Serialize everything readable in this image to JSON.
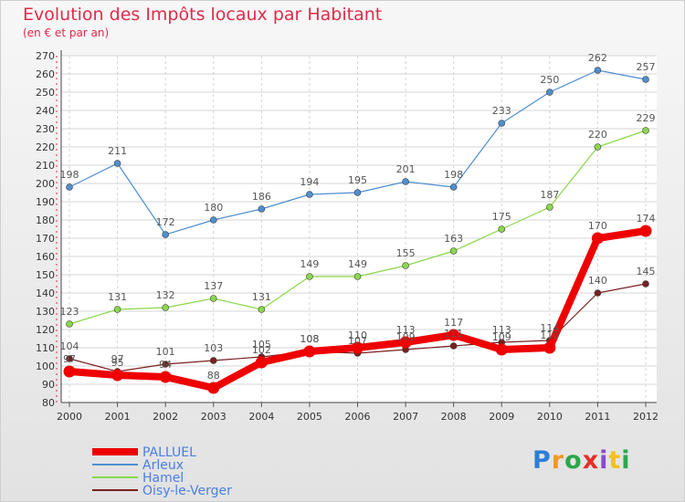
{
  "chart_data": {
    "type": "line",
    "title": "Evolution des Impôts locaux par Habitant",
    "subtitle": "(en € et par an)",
    "categories": [
      "2000",
      "2001",
      "2002",
      "2003",
      "2004",
      "2005",
      "2006",
      "2007",
      "2008",
      "2009",
      "2010",
      "2011",
      "2012"
    ],
    "ylim": [
      80,
      270
    ],
    "yticks": [
      80,
      90,
      100,
      110,
      120,
      130,
      140,
      150,
      160,
      170,
      180,
      190,
      200,
      210,
      220,
      230,
      240,
      250,
      260,
      270
    ],
    "grid": true,
    "legend_position": "bottom-left",
    "series": [
      {
        "name": "PALLUEL",
        "color": "#ee0000",
        "values": [
          97,
          95,
          94,
          88,
          102,
          108,
          110,
          113,
          117,
          109,
          110,
          170,
          174
        ],
        "labels": [
          "97",
          "95",
          "94",
          "88",
          "102",
          "108",
          "110",
          "113",
          "117",
          "109",
          "110",
          "170",
          "174"
        ]
      },
      {
        "name": "Arleux",
        "color": "#4f8fd0",
        "values": [
          198,
          211,
          172,
          180,
          186,
          194,
          195,
          201,
          198,
          233,
          250,
          262,
          257
        ],
        "labels": [
          "198",
          "211",
          "172",
          "180",
          "186",
          "194",
          "195",
          "201",
          "198",
          "233",
          "250",
          "262",
          "257"
        ]
      },
      {
        "name": "Hamel",
        "color": "#8ad84a",
        "values": [
          123,
          131,
          132,
          137,
          131,
          149,
          149,
          155,
          163,
          175,
          187,
          220,
          229
        ],
        "labels": [
          "123",
          "131",
          "132",
          "137",
          "131",
          "149",
          "149",
          "155",
          "163",
          "175",
          "187",
          "220",
          "229"
        ]
      },
      {
        "name": "Oisy-le-Verger",
        "color": "#7a2020",
        "values": [
          104,
          97,
          101,
          103,
          105,
          108,
          107,
          109,
          111,
          113,
          114,
          140,
          145
        ],
        "labels": [
          "104",
          "97",
          "101",
          "103",
          "105",
          "108",
          "107",
          "109",
          "111",
          "113",
          "114",
          "140",
          "145"
        ]
      }
    ]
  },
  "brand": {
    "letters": [
      "P",
      "r",
      "o",
      "x",
      "i",
      "t",
      "i"
    ],
    "colors": [
      "#2b7fd8",
      "#f29a1a",
      "#2aa84a",
      "#e0302a",
      "#8a4ad0",
      "#f2c21a",
      "#2aa84a"
    ]
  }
}
